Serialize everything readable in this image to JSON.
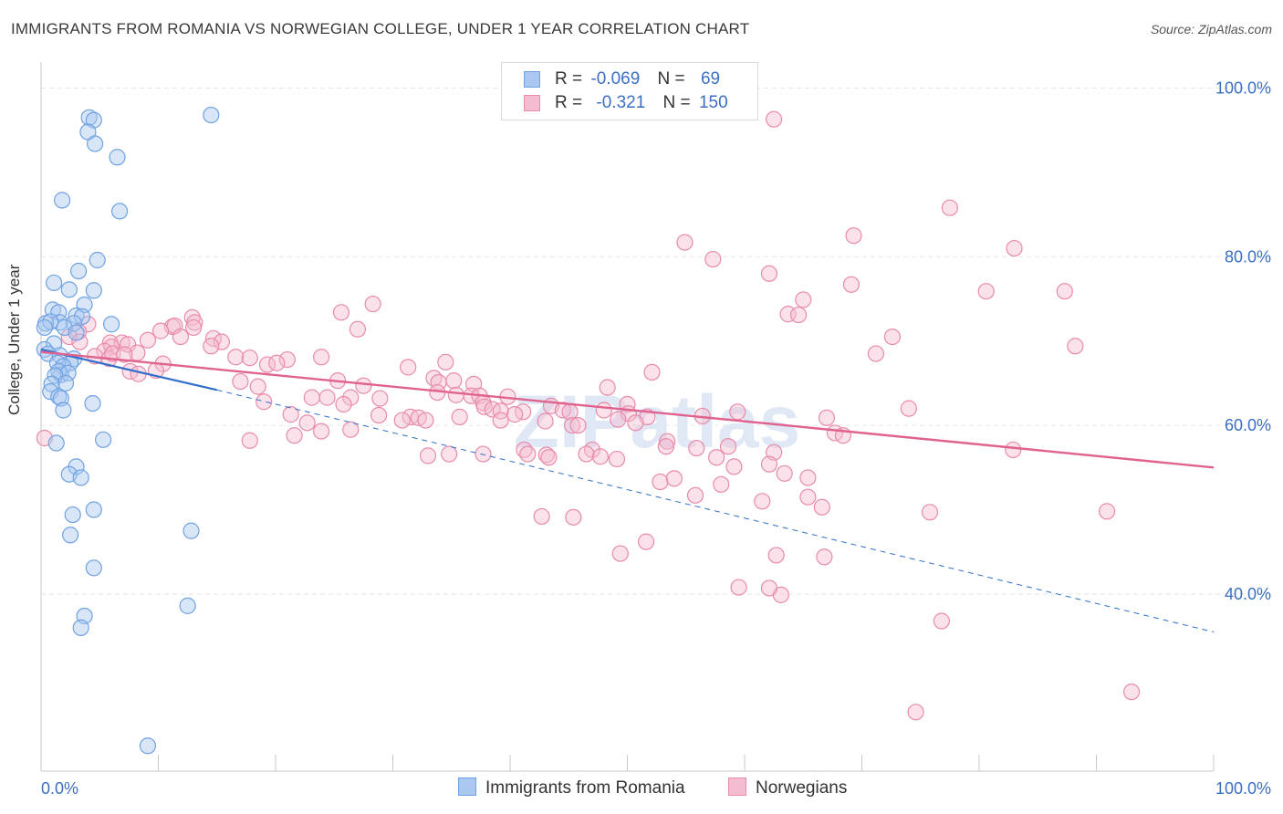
{
  "title": "IMMIGRANTS FROM ROMANIA VS NORWEGIAN COLLEGE, UNDER 1 YEAR CORRELATION CHART",
  "source": "Source: ZipAtlas.com",
  "legend": {
    "row1": {
      "r_label": "R =",
      "r_value": "-0.069",
      "n_label": "N =",
      "n_value": "69"
    },
    "row2": {
      "r_label": "R =",
      "r_value": "-0.321",
      "n_label": "N =",
      "n_value": "150"
    }
  },
  "colors": {
    "blue": "#6fa2e3",
    "blue_fill": "#a9c7f0",
    "blue_line": "#2f6fc9",
    "pink": "#e98bab",
    "pink_fill": "#f4bcd0",
    "pink_line": "#e0628f",
    "tick": "#3b6fc4",
    "grid": "#e6e6e6"
  },
  "watermark": "ZIPatlas",
  "chart_data": {
    "type": "scatter",
    "xlabel": "",
    "ylabel": "College, Under 1 year",
    "xlim": [
      0,
      100
    ],
    "ylim": [
      19,
      102
    ],
    "x_tick_labels": [
      "0.0%",
      "100.0%"
    ],
    "y_ticks": [
      40,
      60,
      80,
      100
    ],
    "y_tick_labels": [
      "40.0%",
      "60.0%",
      "80.0%",
      "100.0%"
    ],
    "grid": true,
    "legend_position": "bottom",
    "series": [
      {
        "name": "Immigrants from Romania",
        "color": "#6fa2e3",
        "trend": {
          "x": [
            0,
            15
          ],
          "y": [
            69.0,
            64.2
          ],
          "dashed_to": [
            100,
            35.5
          ]
        },
        "points": [
          [
            4.1,
            96.5
          ],
          [
            4.5,
            96.2
          ],
          [
            14.5,
            96.8
          ],
          [
            4.0,
            94.8
          ],
          [
            4.6,
            93.4
          ],
          [
            6.5,
            91.8
          ],
          [
            1.8,
            86.7
          ],
          [
            6.7,
            85.4
          ],
          [
            4.8,
            79.6
          ],
          [
            3.2,
            78.3
          ],
          [
            1.1,
            76.9
          ],
          [
            4.5,
            76.0
          ],
          [
            2.4,
            76.1
          ],
          [
            3.7,
            74.3
          ],
          [
            1.0,
            73.7
          ],
          [
            1.5,
            73.4
          ],
          [
            3.0,
            73.0
          ],
          [
            3.5,
            72.9
          ],
          [
            1.6,
            72.2
          ],
          [
            0.4,
            72.1
          ],
          [
            0.8,
            72.3
          ],
          [
            2.8,
            72.1
          ],
          [
            6.0,
            72.0
          ],
          [
            2.0,
            71.6
          ],
          [
            3.0,
            71.0
          ],
          [
            0.3,
            71.6
          ],
          [
            1.1,
            69.7
          ],
          [
            0.3,
            69.0
          ],
          [
            0.6,
            68.5
          ],
          [
            1.6,
            68.3
          ],
          [
            2.8,
            67.9
          ],
          [
            2.5,
            67.4
          ],
          [
            1.4,
            67.4
          ],
          [
            1.9,
            67.0
          ],
          [
            1.7,
            66.0
          ],
          [
            1.5,
            66.4
          ],
          [
            2.3,
            66.2
          ],
          [
            1.2,
            65.9
          ],
          [
            2.1,
            65.0
          ],
          [
            0.9,
            64.9
          ],
          [
            0.8,
            64.0
          ],
          [
            1.5,
            63.4
          ],
          [
            1.7,
            63.2
          ],
          [
            4.4,
            62.6
          ],
          [
            1.9,
            61.8
          ],
          [
            5.3,
            58.3
          ],
          [
            1.3,
            57.9
          ],
          [
            3.0,
            55.1
          ],
          [
            2.4,
            54.2
          ],
          [
            3.4,
            53.8
          ],
          [
            4.5,
            50.0
          ],
          [
            2.7,
            49.4
          ],
          [
            12.8,
            47.5
          ],
          [
            2.5,
            47.0
          ],
          [
            4.5,
            43.1
          ],
          [
            12.5,
            38.6
          ],
          [
            3.7,
            37.4
          ],
          [
            3.4,
            36.0
          ],
          [
            9.1,
            22.0
          ]
        ]
      },
      {
        "name": "Norwegians",
        "color": "#e98bab",
        "trend": {
          "x": [
            0,
            100
          ],
          "y": [
            68.7,
            55.0
          ]
        },
        "points": [
          [
            62.5,
            96.3
          ],
          [
            77.5,
            85.8
          ],
          [
            69.3,
            82.5
          ],
          [
            54.9,
            81.7
          ],
          [
            83.0,
            81.0
          ],
          [
            57.3,
            79.7
          ],
          [
            62.1,
            78.0
          ],
          [
            69.1,
            76.7
          ],
          [
            80.6,
            75.9
          ],
          [
            87.3,
            75.9
          ],
          [
            65.0,
            74.9
          ],
          [
            28.3,
            74.4
          ],
          [
            25.6,
            73.4
          ],
          [
            63.7,
            73.2
          ],
          [
            64.6,
            73.1
          ],
          [
            12.9,
            72.8
          ],
          [
            13.1,
            72.2
          ],
          [
            13.0,
            71.6
          ],
          [
            11.2,
            71.7
          ],
          [
            11.4,
            71.8
          ],
          [
            4.0,
            72.0
          ],
          [
            3.2,
            71.1
          ],
          [
            27.0,
            71.4
          ],
          [
            10.2,
            71.2
          ],
          [
            11.9,
            70.5
          ],
          [
            9.1,
            70.1
          ],
          [
            2.4,
            70.5
          ],
          [
            14.7,
            70.3
          ],
          [
            15.4,
            69.9
          ],
          [
            3.3,
            69.9
          ],
          [
            5.9,
            69.8
          ],
          [
            6.9,
            69.8
          ],
          [
            14.5,
            69.4
          ],
          [
            7.4,
            69.6
          ],
          [
            6.0,
            69.3
          ],
          [
            5.4,
            68.8
          ],
          [
            8.2,
            68.6
          ],
          [
            71.2,
            68.5
          ],
          [
            4.6,
            68.2
          ],
          [
            5.8,
            67.9
          ],
          [
            6.1,
            68.5
          ],
          [
            7.1,
            68.4
          ],
          [
            16.6,
            68.1
          ],
          [
            17.8,
            68.0
          ],
          [
            21.0,
            67.8
          ],
          [
            19.3,
            67.2
          ],
          [
            10.4,
            67.3
          ],
          [
            23.9,
            68.1
          ],
          [
            31.3,
            66.9
          ],
          [
            20.1,
            67.4
          ],
          [
            34.5,
            67.5
          ],
          [
            52.1,
            66.3
          ],
          [
            7.6,
            66.4
          ],
          [
            8.3,
            66.1
          ],
          [
            9.8,
            66.5
          ],
          [
            33.5,
            65.6
          ],
          [
            25.3,
            65.3
          ],
          [
            17.0,
            65.2
          ],
          [
            33.9,
            65.1
          ],
          [
            35.2,
            65.3
          ],
          [
            36.9,
            64.9
          ],
          [
            27.5,
            64.7
          ],
          [
            48.3,
            64.5
          ],
          [
            18.5,
            64.6
          ],
          [
            33.8,
            63.9
          ],
          [
            35.4,
            63.6
          ],
          [
            36.7,
            63.5
          ],
          [
            37.4,
            63.5
          ],
          [
            23.1,
            63.3
          ],
          [
            26.4,
            63.3
          ],
          [
            24.4,
            63.3
          ],
          [
            28.9,
            63.2
          ],
          [
            37.7,
            62.7
          ],
          [
            39.8,
            63.4
          ],
          [
            19.0,
            62.8
          ],
          [
            25.8,
            62.5
          ],
          [
            37.8,
            62.2
          ],
          [
            43.5,
            62.3
          ],
          [
            50.0,
            62.5
          ],
          [
            38.5,
            61.9
          ],
          [
            39.2,
            61.7
          ],
          [
            41.1,
            61.6
          ],
          [
            44.5,
            61.8
          ],
          [
            50.1,
            61.4
          ],
          [
            51.7,
            61.0
          ],
          [
            56.4,
            61.1
          ],
          [
            59.4,
            61.6
          ],
          [
            21.3,
            61.3
          ],
          [
            28.8,
            61.2
          ],
          [
            31.5,
            61.0
          ],
          [
            32.2,
            60.9
          ],
          [
            35.7,
            61.0
          ],
          [
            45.1,
            61.6
          ],
          [
            48.0,
            61.8
          ],
          [
            49.2,
            60.7
          ],
          [
            50.7,
            60.3
          ],
          [
            39.2,
            60.6
          ],
          [
            40.4,
            61.3
          ],
          [
            43.0,
            60.5
          ],
          [
            45.3,
            60.0
          ],
          [
            45.8,
            60.0
          ],
          [
            30.8,
            60.6
          ],
          [
            32.8,
            60.6
          ],
          [
            22.7,
            60.3
          ],
          [
            26.4,
            59.5
          ],
          [
            23.9,
            59.3
          ],
          [
            21.6,
            58.8
          ],
          [
            67.0,
            60.9
          ],
          [
            67.7,
            59.1
          ],
          [
            17.8,
            58.2
          ],
          [
            53.4,
            58.1
          ],
          [
            58.6,
            57.5
          ],
          [
            53.3,
            57.5
          ],
          [
            55.9,
            57.3
          ],
          [
            41.2,
            57.1
          ],
          [
            47.0,
            57.1
          ],
          [
            62.5,
            56.8
          ],
          [
            57.6,
            56.2
          ],
          [
            46.5,
            56.6
          ],
          [
            47.7,
            56.3
          ],
          [
            49.1,
            56.0
          ],
          [
            37.7,
            56.6
          ],
          [
            43.1,
            56.5
          ],
          [
            33.0,
            56.4
          ],
          [
            34.8,
            56.6
          ],
          [
            43.3,
            56.2
          ],
          [
            41.5,
            56.6
          ],
          [
            59.1,
            55.1
          ],
          [
            62.1,
            55.4
          ],
          [
            65.4,
            53.8
          ],
          [
            63.4,
            54.3
          ],
          [
            52.8,
            53.3
          ],
          [
            54.0,
            53.7
          ],
          [
            58.0,
            53.0
          ],
          [
            65.4,
            51.5
          ],
          [
            55.8,
            51.7
          ],
          [
            61.5,
            51.0
          ],
          [
            66.6,
            50.3
          ],
          [
            75.8,
            49.7
          ],
          [
            45.4,
            49.1
          ],
          [
            42.7,
            49.2
          ],
          [
            90.9,
            49.8
          ],
          [
            51.6,
            46.2
          ],
          [
            49.4,
            44.8
          ],
          [
            62.7,
            44.6
          ],
          [
            66.8,
            44.4
          ],
          [
            59.5,
            40.8
          ],
          [
            63.1,
            39.9
          ],
          [
            62.1,
            40.7
          ],
          [
            82.9,
            57.1
          ],
          [
            68.4,
            58.8
          ],
          [
            74.0,
            62.0
          ],
          [
            88.2,
            69.4
          ],
          [
            72.6,
            70.5
          ],
          [
            93.0,
            28.4
          ],
          [
            76.8,
            36.8
          ],
          [
            74.6,
            26.0
          ],
          [
            0.3,
            58.5
          ]
        ]
      }
    ]
  }
}
